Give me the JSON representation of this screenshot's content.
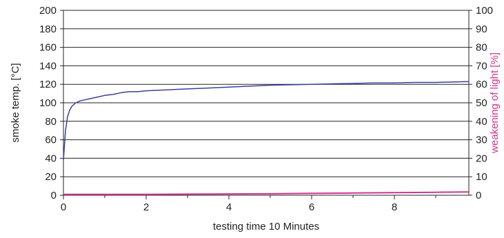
{
  "chart_data": {
    "type": "line",
    "xlabel": "testing time 10 Minutes",
    "ylabel": "smoke temp. [°C]",
    "y2label": "weakening of light [%]",
    "xlim": [
      0,
      9.8
    ],
    "ylim": [
      0,
      200
    ],
    "y2lim": [
      0,
      100
    ],
    "x_ticks": [
      0,
      2,
      4,
      6,
      8
    ],
    "y_ticks": [
      0,
      20,
      40,
      60,
      80,
      100,
      120,
      140,
      160,
      180,
      200
    ],
    "y2_ticks": [
      0,
      10,
      20,
      30,
      40,
      50,
      60,
      70,
      80,
      90,
      100
    ],
    "grid": "horizontal",
    "colors": {
      "temperature": "#3a3f9a",
      "light": "#d2338f",
      "grid": "#222222"
    },
    "series": [
      {
        "axis": "left",
        "x": [
          0,
          0.05,
          0.1,
          0.15,
          0.2,
          0.3,
          0.4,
          0.6,
          0.8,
          1.0,
          1.2,
          1.4,
          1.6,
          1.8,
          2.0,
          2.5,
          3.0,
          3.5,
          4.0,
          4.5,
          5.0,
          5.5,
          6.0,
          6.5,
          7.0,
          7.5,
          8.0,
          8.5,
          9.0,
          9.5,
          9.8
        ],
        "y": [
          38,
          70,
          85,
          92,
          96,
          100,
          102,
          104,
          106,
          108,
          109,
          111,
          112,
          112,
          113,
          114,
          115,
          116,
          117,
          118,
          119,
          119.5,
          120,
          120.5,
          121,
          121.5,
          121.5,
          122,
          122,
          122.5,
          123
        ]
      },
      {
        "axis": "right",
        "x": [
          0,
          1,
          2,
          3,
          4,
          5,
          6,
          7,
          8,
          9,
          9.8
        ],
        "y": [
          0.5,
          0.5,
          0.5,
          0.6,
          0.7,
          0.8,
          1.0,
          1.2,
          1.4,
          1.6,
          1.8
        ]
      }
    ]
  }
}
